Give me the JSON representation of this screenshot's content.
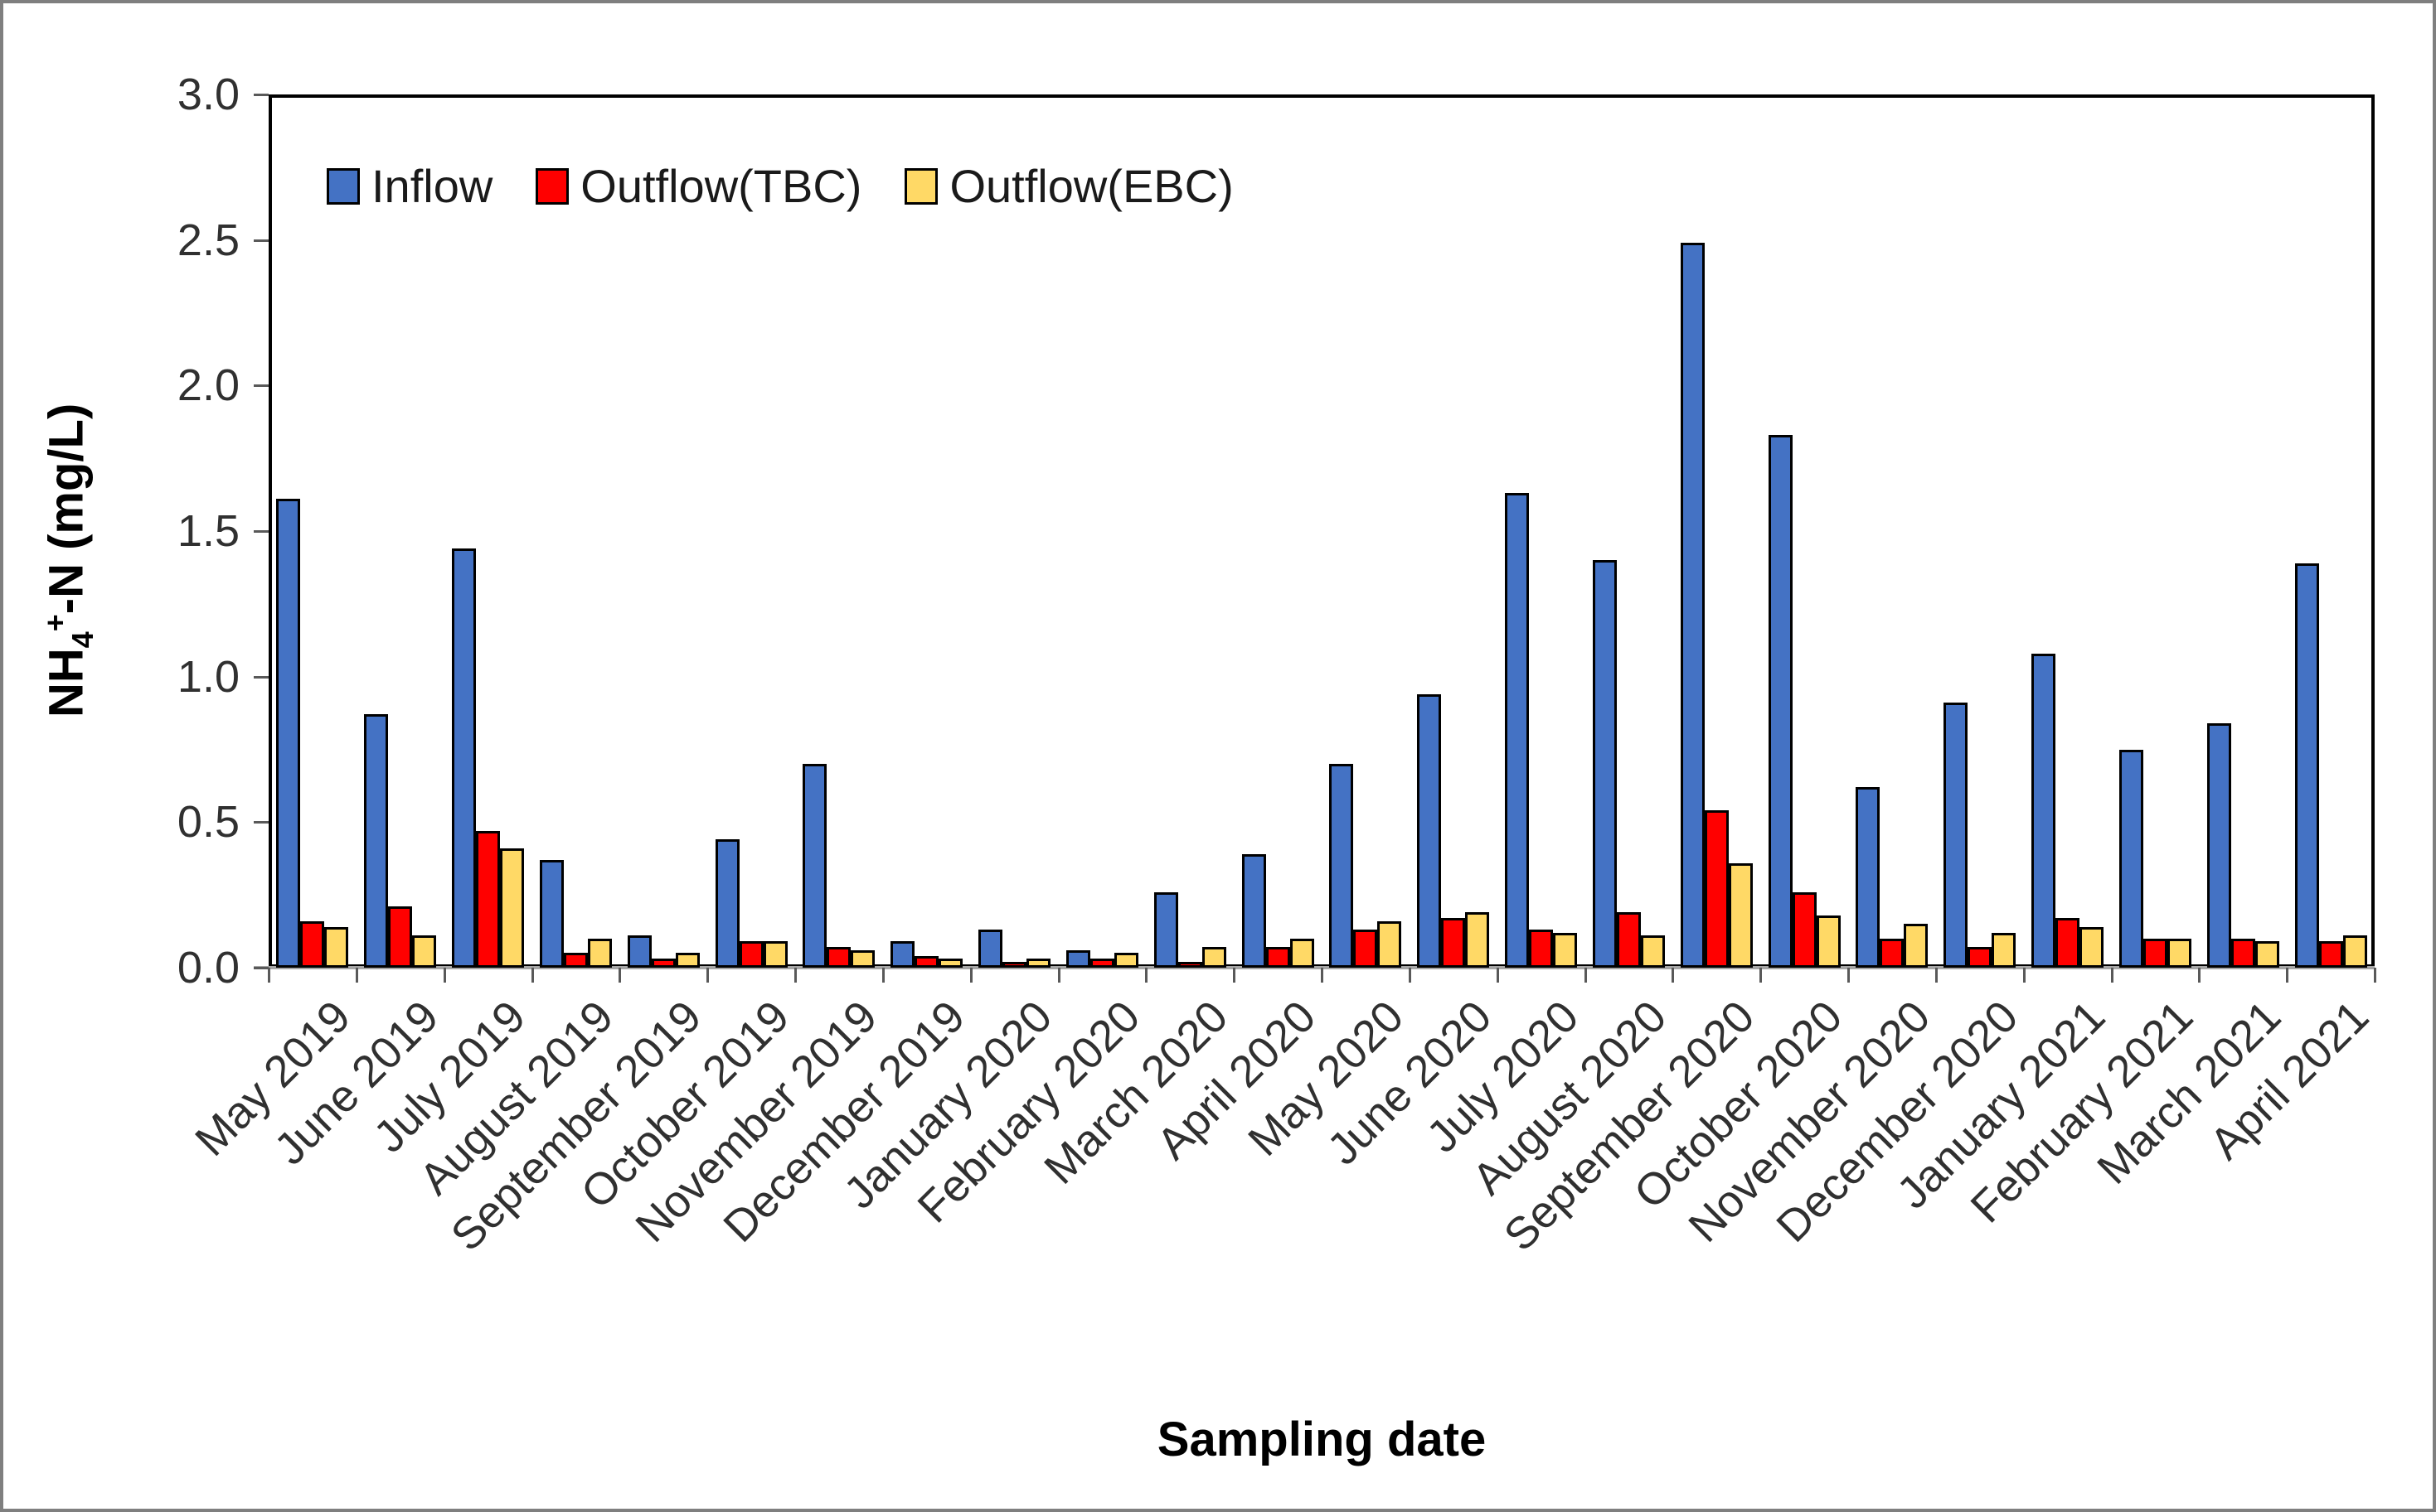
{
  "chart_data": {
    "type": "bar",
    "title": "",
    "xlabel": "Sampling date",
    "ylabel": "NH4+-N (mg/L)",
    "ylabel_parts": {
      "pre": "NH",
      "sub": "4",
      "sup": "+",
      "post": "-N (mg/L)"
    },
    "ylim": [
      0,
      3.0
    ],
    "ytick_step": 0.5,
    "ytick_labels": [
      "0.0",
      "0.5",
      "1.0",
      "1.5",
      "2.0",
      "2.5",
      "3.0"
    ],
    "grid": false,
    "legend_position": "top-left-inside",
    "categories": [
      "May 2019",
      "June 2019",
      "July 2019",
      "August 2019",
      "September 2019",
      "October 2019",
      "November 2019",
      "December 2019",
      "January 2020",
      "February 2020",
      "March 2020",
      "April 2020",
      "May 2020",
      "June 2020",
      "July 2020",
      "August 2020",
      "September 2020",
      "October 2020",
      "November 2020",
      "December 2020",
      "January 2021",
      "February 2021",
      "March 2021",
      "April 2021"
    ],
    "series": [
      {
        "name": "Inflow",
        "color": "#4472C4",
        "values": [
          1.61,
          0.87,
          1.44,
          0.37,
          0.11,
          0.44,
          0.7,
          0.09,
          0.13,
          0.06,
          0.26,
          0.39,
          0.7,
          0.94,
          1.63,
          1.4,
          2.49,
          1.83,
          0.62,
          0.91,
          1.08,
          0.75,
          0.84,
          1.39
        ]
      },
      {
        "name": "Outflow(TBC)",
        "color": "#FF0000",
        "values": [
          0.16,
          0.21,
          0.47,
          0.05,
          0.03,
          0.09,
          0.07,
          0.04,
          0.02,
          0.03,
          0.02,
          0.07,
          0.13,
          0.17,
          0.13,
          0.19,
          0.54,
          0.26,
          0.1,
          0.07,
          0.17,
          0.1,
          0.1,
          0.09
        ]
      },
      {
        "name": "Outflow(EBC)",
        "color": "#FFD966",
        "values": [
          0.14,
          0.11,
          0.41,
          0.1,
          0.05,
          0.09,
          0.06,
          0.03,
          0.03,
          0.05,
          0.07,
          0.1,
          0.16,
          0.19,
          0.12,
          0.11,
          0.36,
          0.18,
          0.15,
          0.12,
          0.14,
          0.1,
          0.09,
          0.11
        ]
      }
    ]
  }
}
